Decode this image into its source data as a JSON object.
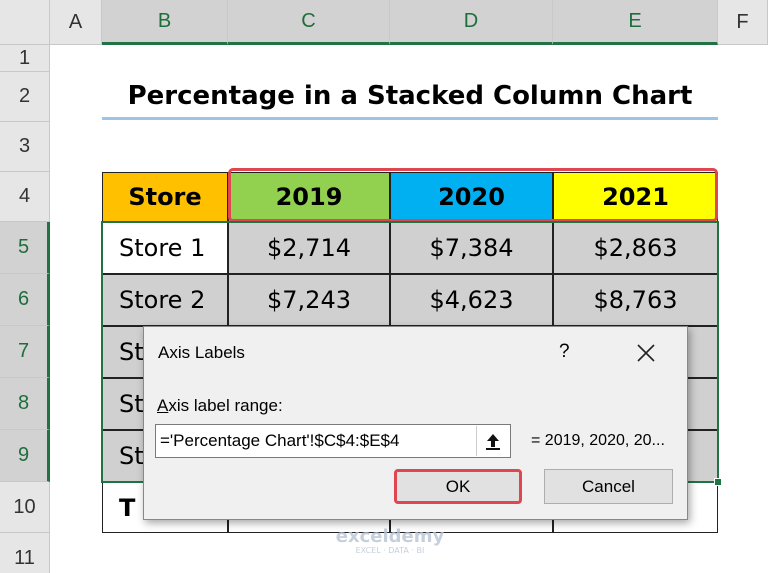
{
  "column_headers": [
    "A",
    "B",
    "C",
    "D",
    "E",
    "F"
  ],
  "row_headers": [
    "1",
    "2",
    "3",
    "4",
    "5",
    "6",
    "7",
    "8",
    "9",
    "10",
    "11"
  ],
  "title": "Percentage in a Stacked Column Chart",
  "table": {
    "header": [
      "Store",
      "2019",
      "2020",
      "2021"
    ],
    "rows": [
      [
        "Store 1",
        "$2,714",
        "$7,384",
        "$2,863"
      ],
      [
        "Store 2",
        "$7,243",
        "$4,623",
        "$8,763"
      ],
      [
        "St"
      ],
      [
        "St"
      ],
      [
        "St"
      ],
      [
        "T"
      ]
    ]
  },
  "dialog": {
    "title": "Axis Labels",
    "help": "?",
    "label": "Axis label range:",
    "range": "='Percentage Chart'!$C$4:$E$4",
    "preview": "= 2019, 2020, 20...",
    "ok": "OK",
    "cancel": "Cancel"
  },
  "watermark": {
    "brand": "exceldemy",
    "tagline": "EXCEL · DATA · BI"
  }
}
